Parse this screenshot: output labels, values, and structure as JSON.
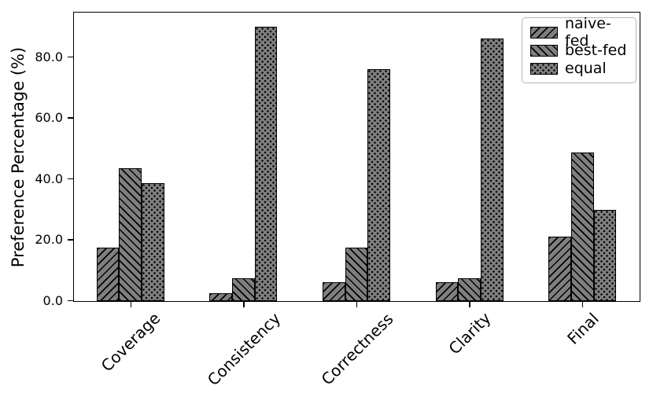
{
  "chart_data": {
    "type": "bar",
    "title": "",
    "xlabel": "",
    "ylabel": "Preference Percentage (%)",
    "categories": [
      "Coverage",
      "Consistency",
      "Correctness",
      "Clarity",
      "Final"
    ],
    "series": [
      {
        "name": "naive-fed",
        "hatch": "diagonal-forward",
        "values": [
          17.5,
          2.5,
          6.25,
          6.25,
          21.25
        ]
      },
      {
        "name": "best-fed",
        "hatch": "diagonal-backward",
        "values": [
          43.75,
          7.5,
          17.5,
          7.5,
          48.75
        ]
      },
      {
        "name": "equal",
        "hatch": "dots",
        "values": [
          38.75,
          90.0,
          76.25,
          86.25,
          30.0
        ]
      }
    ],
    "ylim": [
      0,
      94.5
    ],
    "yticks": [
      0,
      20,
      40,
      60,
      80
    ],
    "ytick_labels": [
      "0.0",
      "20.0",
      "40.0",
      "60.0",
      "80.0"
    ],
    "x_tick_rotation_deg": 45,
    "bar_fill_color": "#7f7f7f",
    "bar_edge_color": "#000000",
    "legend_position": "upper-right",
    "grid": false
  }
}
